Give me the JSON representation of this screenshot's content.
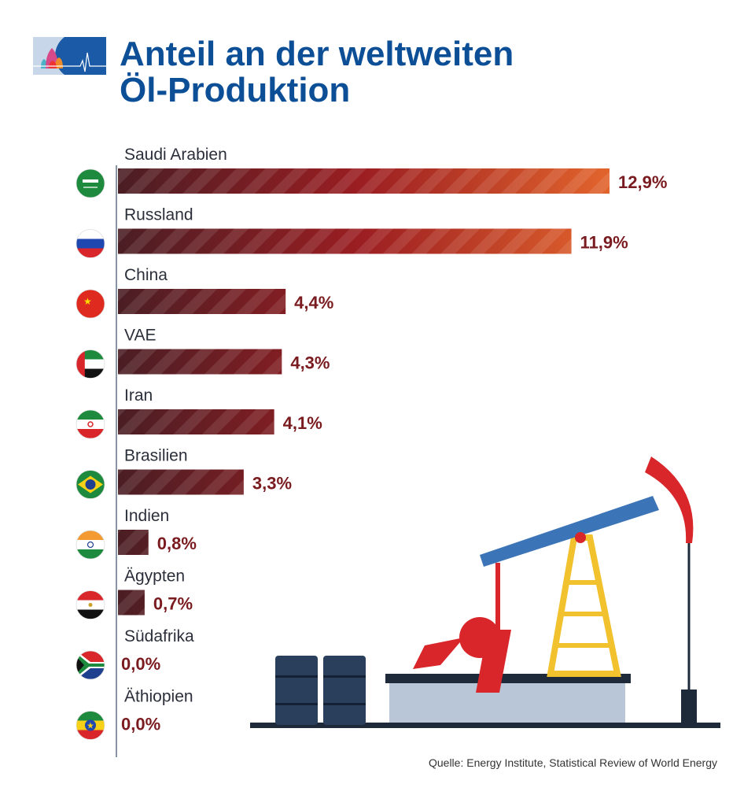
{
  "title_line1": "Anteil an der weltweiten",
  "title_line2": "Öl-Produktion",
  "source": "Quelle: Energy Institute, Statistical Review of World Energy",
  "colors": {
    "title": "#0d4f96",
    "bar_start": "#4a1e24",
    "bar_end": "#e2642c",
    "value_text": "#7a1b1f"
  },
  "chart_data": {
    "type": "bar",
    "orientation": "horizontal",
    "categories": [
      "Saudi Arabien",
      "Russland",
      "China",
      "VAE",
      "Iran",
      "Brasilien",
      "Indien",
      "Ägypten",
      "Südafrika",
      "Äthiopien"
    ],
    "values": [
      12.9,
      11.9,
      4.4,
      4.3,
      4.1,
      3.3,
      0.8,
      0.7,
      0.0,
      0.0
    ],
    "value_labels": [
      "12,9%",
      "11,9%",
      "4,4%",
      "4,3%",
      "4,1%",
      "3,3%",
      "0,8%",
      "0,7%",
      "0,0%",
      "0,0%"
    ],
    "flags": [
      "saudi-arabia",
      "russia",
      "china",
      "uae",
      "iran",
      "brazil",
      "india",
      "egypt",
      "south-africa",
      "ethiopia"
    ],
    "unit": "%",
    "grid": false
  }
}
